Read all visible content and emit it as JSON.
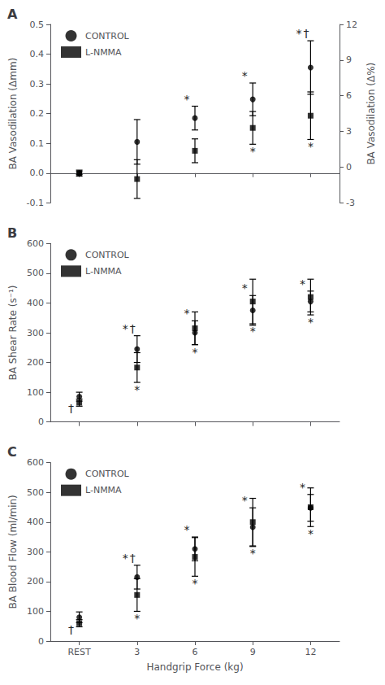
{
  "chart_data": [
    {
      "type": "scatter",
      "title": "A",
      "categories": [
        "REST",
        "3",
        "6",
        "9",
        "12"
      ],
      "ylabel": "BA Vasodilation (Δmm)",
      "y2label": "BA Vasodilation (Δ%)",
      "ylim": [
        -0.1,
        0.5
      ],
      "yticks": [
        -0.1,
        {
          "value": 0.0,
          "label": "0.0"
        },
        0.1,
        0.2,
        0.3,
        0.4,
        0.5
      ],
      "y2lim": [
        -3,
        12
      ],
      "y2ticks": [
        -3,
        0,
        3,
        6,
        9,
        12
      ],
      "grid": false,
      "legend": "upper left",
      "tick_labels": "y",
      "series": [
        {
          "name": "CONTROL",
          "color": "black",
          "marker": "circle",
          "values": [
            0.0,
            0.105,
            0.185,
            0.248,
            0.355
          ],
          "yerr": [
            0.01,
            0.075,
            0.04,
            0.055,
            0.09
          ]
        },
        {
          "name": "L-NMMA",
          "color": "black",
          "marker": "square",
          "values": [
            0.0,
            -0.02,
            0.075,
            0.152,
            0.193
          ],
          "yerr": [
            0.005,
            0.065,
            0.04,
            0.055,
            0.08
          ]
        }
      ],
      "annotations": [
        {
          "text": "*",
          "x": "6",
          "series": "CONTROL",
          "position": "above"
        },
        {
          "text": "*",
          "x": "9",
          "series": "CONTROL",
          "position": "above"
        },
        {
          "text": "*",
          "x": "12",
          "series": "CONTROL",
          "position": "above"
        },
        {
          "text": "†",
          "x": "12",
          "series": "CONTROL",
          "position": "above"
        },
        {
          "text": "*",
          "x": "9",
          "series": "L-NMMA",
          "position": "below"
        },
        {
          "text": "*",
          "x": "12",
          "series": "L-NMMA",
          "position": "below"
        }
      ]
    },
    {
      "type": "scatter",
      "title": "B",
      "categories": [
        "REST",
        "3",
        "6",
        "9",
        "12"
      ],
      "ylabel": "BA Shear Rate (s⁻¹)",
      "ylim": [
        0,
        600
      ],
      "yticks": [
        0,
        100,
        200,
        300,
        400,
        500,
        600
      ],
      "grid": false,
      "legend": "upper left",
      "tick_labels": "y",
      "series": [
        {
          "name": "CONTROL",
          "color": "black",
          "marker": "circle",
          "values": [
            85,
            245,
            300,
            375,
            405
          ],
          "yerr": [
            15,
            45,
            40,
            50,
            35
          ]
        },
        {
          "name": "L-NMMA",
          "color": "black",
          "marker": "square",
          "values": [
            65,
            183,
            315,
            405,
            420
          ],
          "yerr": [
            12,
            50,
            55,
            75,
            60
          ]
        }
      ],
      "annotations": [
        {
          "text": "†",
          "x": "REST",
          "series": "CONTROL",
          "position": "below"
        },
        {
          "text": "*",
          "x": "3",
          "series": "CONTROL",
          "position": "above"
        },
        {
          "text": "†",
          "x": "3",
          "series": "CONTROL",
          "position": "above"
        },
        {
          "text": "*",
          "x": "6",
          "series": "CONTROL",
          "position": "above"
        },
        {
          "text": "*",
          "x": "9",
          "series": "CONTROL",
          "position": "above"
        },
        {
          "text": "*",
          "x": "12",
          "series": "CONTROL",
          "position": "above"
        },
        {
          "text": "*",
          "x": "3",
          "series": "L-NMMA",
          "position": "below"
        },
        {
          "text": "*",
          "x": "6",
          "series": "L-NMMA",
          "position": "below"
        },
        {
          "text": "*",
          "x": "9",
          "series": "L-NMMA",
          "position": "below"
        },
        {
          "text": "*",
          "x": "12",
          "series": "L-NMMA",
          "position": "below"
        }
      ]
    },
    {
      "type": "scatter",
      "title": "C",
      "categories": [
        "REST",
        "3",
        "6",
        "9",
        "12"
      ],
      "xlabel": "Handgrip Force (kg)",
      "ylabel": "BA Blood Flow (ml/min)",
      "ylim": [
        0,
        600
      ],
      "yticks": [
        0,
        100,
        200,
        300,
        400,
        500,
        600
      ],
      "grid": false,
      "legend": "upper left",
      "series": [
        {
          "name": "CONTROL",
          "color": "black",
          "marker": "circle",
          "values": [
            80,
            215,
            310,
            383,
            448
          ],
          "yerr": [
            18,
            40,
            40,
            65,
            45
          ]
        },
        {
          "name": "L-NMMA",
          "color": "black",
          "marker": "square",
          "values": [
            60,
            155,
            283,
            400,
            450
          ],
          "yerr": [
            12,
            55,
            65,
            80,
            65
          ]
        }
      ],
      "annotations": [
        {
          "text": "†",
          "x": "REST",
          "series": "CONTROL",
          "position": "below"
        },
        {
          "text": "*",
          "x": "3",
          "series": "CONTROL",
          "position": "above"
        },
        {
          "text": "†",
          "x": "3",
          "series": "CONTROL",
          "position": "above"
        },
        {
          "text": "*",
          "x": "6",
          "series": "CONTROL",
          "position": "above"
        },
        {
          "text": "*",
          "x": "9",
          "series": "CONTROL",
          "position": "above"
        },
        {
          "text": "*",
          "x": "12",
          "series": "CONTROL",
          "position": "above"
        },
        {
          "text": "*",
          "x": "3",
          "series": "L-NMMA",
          "position": "below"
        },
        {
          "text": "*",
          "x": "6",
          "series": "L-NMMA",
          "position": "below"
        },
        {
          "text": "*",
          "x": "9",
          "series": "L-NMMA",
          "position": "below"
        },
        {
          "text": "*",
          "x": "12",
          "series": "L-NMMA",
          "position": "below"
        }
      ]
    }
  ]
}
